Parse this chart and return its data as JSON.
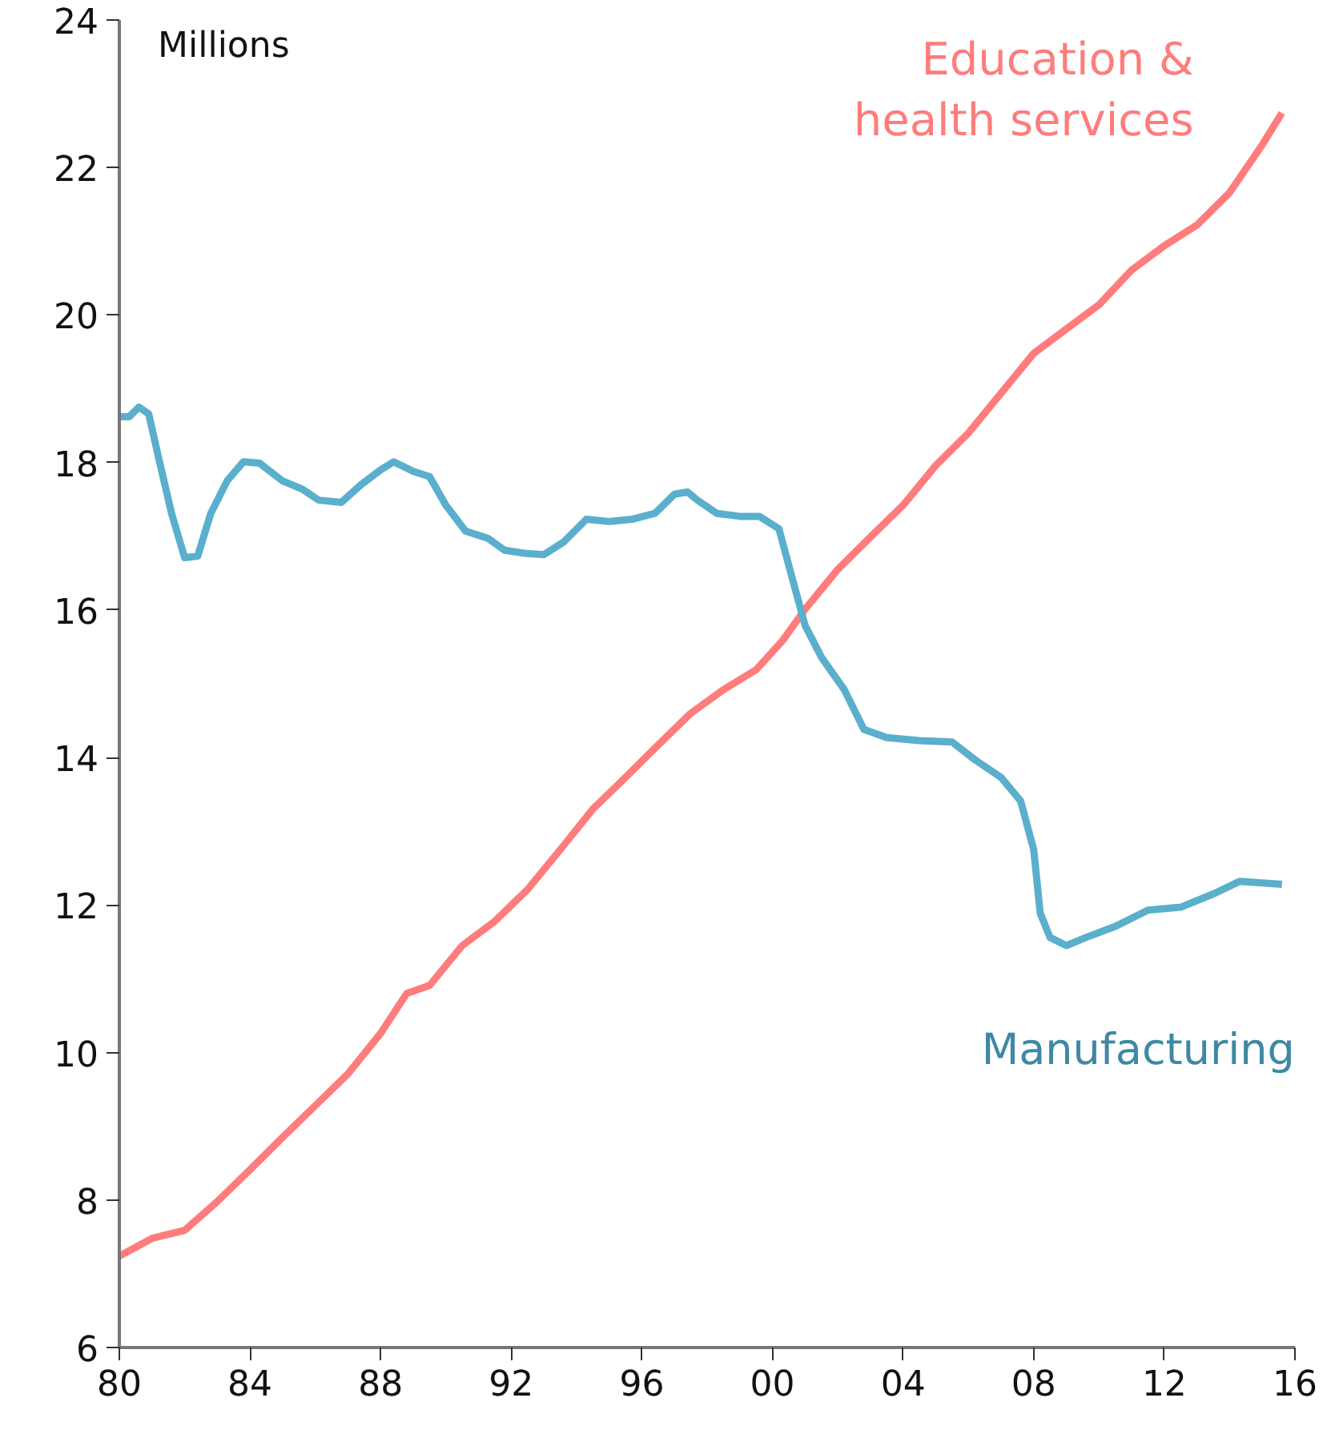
{
  "chart_data": {
    "type": "line",
    "ylabel": "Millions",
    "xlim": [
      1980,
      2016
    ],
    "ylim": [
      6,
      24
    ],
    "xticks": [
      {
        "value": 1980,
        "label": "80"
      },
      {
        "value": 1984,
        "label": "84"
      },
      {
        "value": 1988,
        "label": "88"
      },
      {
        "value": 1992,
        "label": "92"
      },
      {
        "value": 1996,
        "label": "96"
      },
      {
        "value": 2000,
        "label": "00"
      },
      {
        "value": 2004,
        "label": "04"
      },
      {
        "value": 2008,
        "label": "08"
      },
      {
        "value": 2012,
        "label": "12"
      },
      {
        "value": 2016,
        "label": "16"
      }
    ],
    "yticks": [
      6,
      8,
      10,
      12,
      14,
      16,
      18,
      20,
      22,
      24
    ],
    "grid": false,
    "series": [
      {
        "name": "Education & health services",
        "color": "#ff7c7c",
        "x": [
          1980,
          1981,
          1982,
          1983,
          1984,
          1985,
          1986,
          1987,
          1988,
          1988.8,
          1989.5,
          1990.5,
          1991.5,
          1992.5,
          1993.5,
          1994.5,
          1995.5,
          1996.5,
          1997.5,
          1998.5,
          1999.5,
          2000.3,
          2001,
          2002,
          2003,
          2004,
          2005,
          2006,
          2007,
          2008,
          2009,
          2010,
          2011,
          2012,
          2013,
          2014,
          2015,
          2015.6
        ],
        "values": [
          7.24,
          7.48,
          7.59,
          7.98,
          8.41,
          8.85,
          9.28,
          9.71,
          10.26,
          10.8,
          10.91,
          11.45,
          11.78,
          12.21,
          12.75,
          13.3,
          13.73,
          14.17,
          14.6,
          14.92,
          15.19,
          15.58,
          16.01,
          16.55,
          16.99,
          17.42,
          17.96,
          18.4,
          18.94,
          19.48,
          19.81,
          20.14,
          20.61,
          20.94,
          21.22,
          21.66,
          22.31,
          22.74
        ]
      },
      {
        "name": "Manufacturing",
        "color": "#5aafcc",
        "x": [
          1980,
          1980.3,
          1980.6,
          1980.9,
          1981.2,
          1981.6,
          1982,
          1982.4,
          1982.8,
          1983.3,
          1983.8,
          1984.3,
          1985,
          1985.6,
          1986.1,
          1986.8,
          1987.4,
          1988,
          1988.4,
          1989,
          1989.5,
          1990,
          1990.6,
          1991.3,
          1991.8,
          1992.4,
          1993,
          1993.6,
          1994.3,
          1995,
          1995.7,
          1996.4,
          1997,
          1997.4,
          1997.7,
          1998.3,
          1999,
          1999.6,
          2000.2,
          2000.6,
          2001,
          2001.5,
          2002.2,
          2002.8,
          2003.5,
          2004.5,
          2005.5,
          2006.2,
          2007,
          2007.6,
          2008,
          2008.2,
          2008.5,
          2009,
          2009.6,
          2010.5,
          2011.5,
          2012.5,
          2013.5,
          2014.3,
          2015,
          2015.6
        ],
        "values": [
          18.62,
          18.62,
          18.75,
          18.66,
          18.07,
          17.31,
          16.71,
          16.73,
          17.31,
          17.75,
          18.01,
          17.99,
          17.75,
          17.64,
          17.49,
          17.46,
          17.7,
          17.9,
          18.01,
          17.88,
          17.81,
          17.42,
          17.07,
          16.97,
          16.81,
          16.77,
          16.75,
          16.92,
          17.23,
          17.2,
          17.23,
          17.31,
          17.57,
          17.6,
          17.49,
          17.31,
          17.27,
          17.27,
          17.1,
          16.44,
          15.79,
          15.36,
          14.92,
          14.38,
          14.27,
          14.23,
          14.21,
          13.97,
          13.73,
          13.41,
          12.75,
          11.89,
          11.56,
          11.45,
          11.56,
          11.71,
          11.93,
          11.97,
          12.15,
          12.32,
          12.3,
          12.28
        ]
      }
    ]
  }
}
